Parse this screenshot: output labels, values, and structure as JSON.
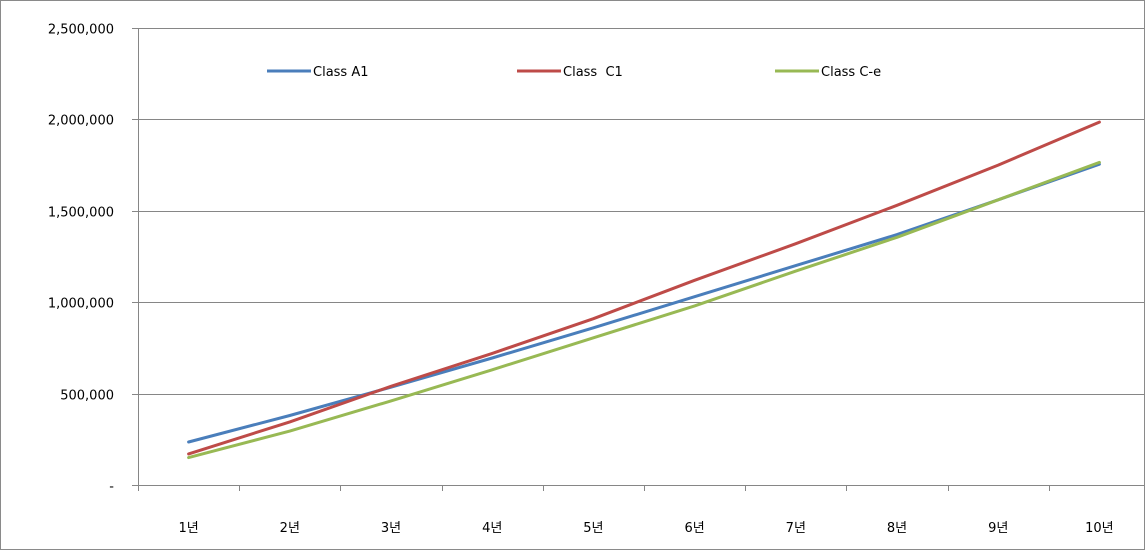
{
  "chart_data": {
    "type": "line",
    "title": "",
    "xlabel": "",
    "ylabel": "",
    "categories": [
      "1년",
      "2년",
      "3년",
      "4년",
      "5년",
      "6년",
      "7년",
      "8년",
      "9년",
      "10년"
    ],
    "ylim": [
      0,
      2500000
    ],
    "y_ticks": [
      0,
      500000,
      1000000,
      1500000,
      2000000,
      2500000
    ],
    "y_tick_labels": [
      "-",
      "500,000",
      "1,000,000",
      "1,500,000",
      "2,000,000",
      "2,500,000"
    ],
    "grid": true,
    "legend_position": "top",
    "series": [
      {
        "name": "Class A1",
        "color": "#4a7ebb",
        "values": [
          235000,
          380000,
          535000,
          695000,
          860000,
          1030000,
          1200000,
          1370000,
          1560000,
          1755000
        ]
      },
      {
        "name": "Class  C1",
        "color": "#be4b48",
        "values": [
          170000,
          345000,
          540000,
          720000,
          910000,
          1120000,
          1320000,
          1530000,
          1750000,
          1985000
        ]
      },
      {
        "name": "Class C-e",
        "color": "#98b954",
        "values": [
          150000,
          295000,
          460000,
          630000,
          805000,
          980000,
          1170000,
          1355000,
          1560000,
          1765000
        ]
      }
    ]
  }
}
